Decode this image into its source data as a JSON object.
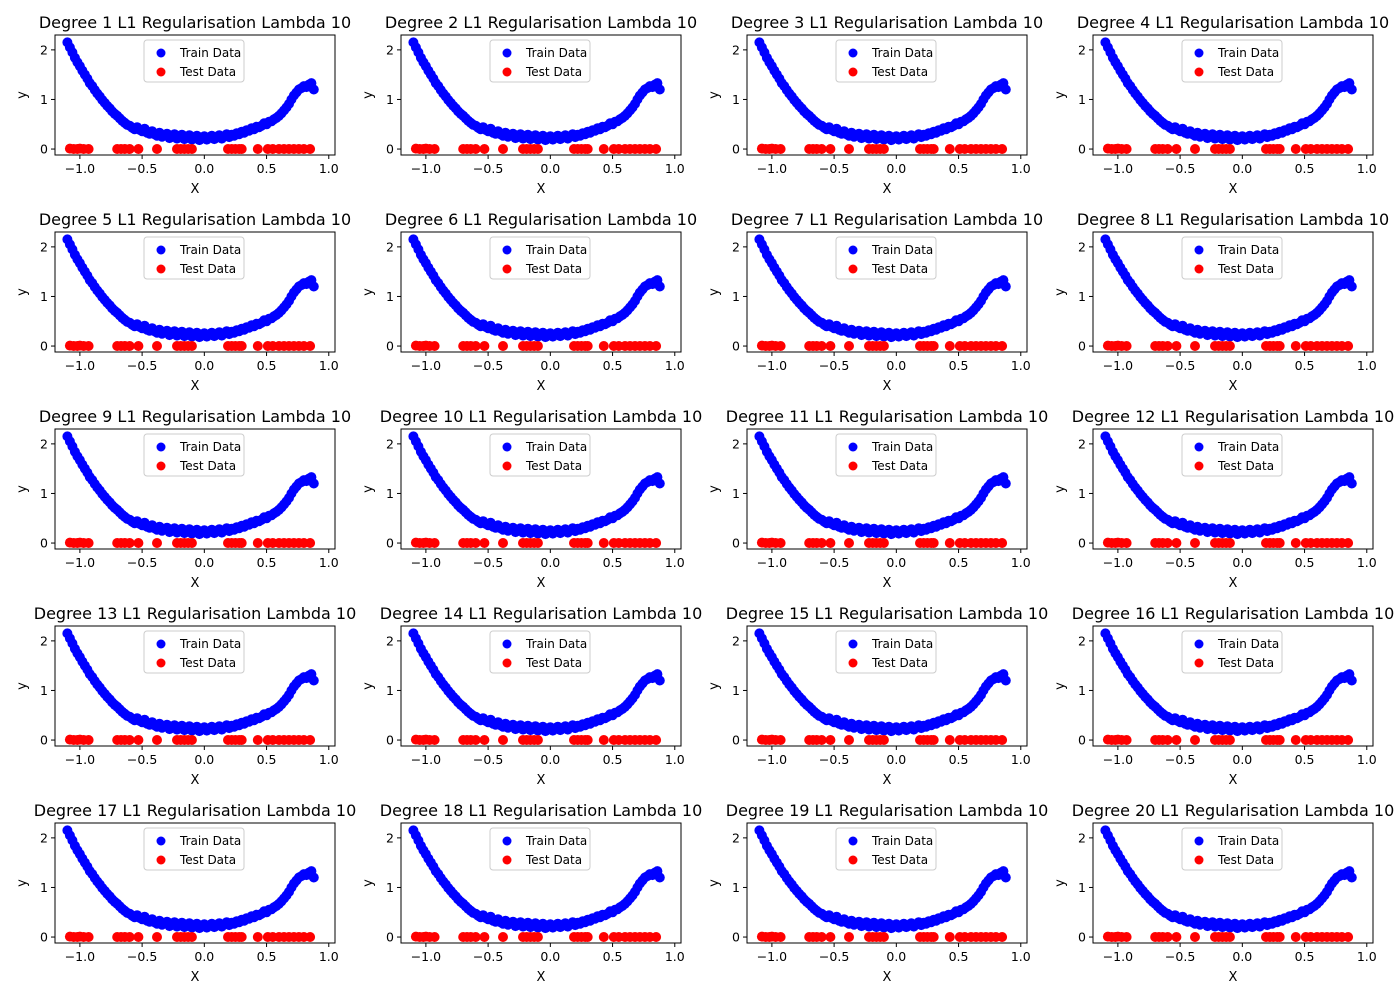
{
  "chart_data": {
    "type": "scatter",
    "layout": {
      "rows": 5,
      "cols": 4
    },
    "common": {
      "xlabel": "X",
      "ylabel": "y",
      "xlim": [
        -1.2,
        1.05
      ],
      "ylim": [
        -0.12,
        2.3
      ],
      "xticks": [
        -1.0,
        -0.5,
        0.0,
        0.5,
        1.0
      ],
      "xtick_labels": [
        "−1.0",
        "−0.5",
        "0.0",
        "0.5",
        "1.0"
      ],
      "yticks": [
        0,
        1,
        2
      ],
      "ytick_labels": [
        "0",
        "1",
        "2"
      ],
      "legend": {
        "placement": "upper center",
        "entries": [
          "Train Data",
          "Test Data"
        ]
      },
      "grid": false
    },
    "titles": [
      "Degree 1 L1 Regularisation Lambda 10",
      "Degree 2 L1 Regularisation Lambda 10",
      "Degree 3 L1 Regularisation Lambda 10",
      "Degree 4 L1 Regularisation Lambda 10",
      "Degree 5 L1 Regularisation Lambda 10",
      "Degree 6 L1 Regularisation Lambda 10",
      "Degree 7 L1 Regularisation Lambda 10",
      "Degree 8 L1 Regularisation Lambda 10",
      "Degree 9 L1 Regularisation Lambda 10",
      "Degree 10 L1 Regularisation Lambda 10",
      "Degree 11 L1 Regularisation Lambda 10",
      "Degree 12 L1 Regularisation Lambda 10",
      "Degree 13 L1 Regularisation Lambda 10",
      "Degree 14 L1 Regularisation Lambda 10",
      "Degree 15 L1 Regularisation Lambda 10",
      "Degree 16 L1 Regularisation Lambda 10",
      "Degree 17 L1 Regularisation Lambda 10",
      "Degree 18 L1 Regularisation Lambda 10",
      "Degree 19 L1 Regularisation Lambda 10",
      "Degree 20 L1 Regularisation Lambda 10"
    ],
    "series": [
      {
        "name": "Train Data",
        "color": "#0000ff",
        "x": [
          -1.1,
          -1.08,
          -1.06,
          -1.04,
          -1.02,
          -1.0,
          -0.98,
          -0.96,
          -0.94,
          -0.92,
          -0.9,
          -0.88,
          -0.86,
          -0.84,
          -0.82,
          -0.8,
          -0.78,
          -0.76,
          -0.74,
          -0.72,
          -0.7,
          -0.68,
          -0.66,
          -0.64,
          -0.62,
          -0.6,
          -0.58,
          -0.56,
          -0.54,
          -0.52,
          -0.5,
          -0.48,
          -0.46,
          -0.44,
          -0.42,
          -0.4,
          -0.38,
          -0.36,
          -0.34,
          -0.32,
          -0.3,
          -0.28,
          -0.26,
          -0.24,
          -0.22,
          -0.2,
          -0.18,
          -0.16,
          -0.14,
          -0.12,
          -0.1,
          -0.08,
          -0.06,
          -0.04,
          -0.02,
          0.0,
          0.02,
          0.04,
          0.06,
          0.08,
          0.1,
          0.12,
          0.14,
          0.16,
          0.18,
          0.2,
          0.22,
          0.24,
          0.26,
          0.28,
          0.3,
          0.32,
          0.34,
          0.36,
          0.38,
          0.4,
          0.42,
          0.44,
          0.46,
          0.48,
          0.5,
          0.52,
          0.54,
          0.56,
          0.58,
          0.6,
          0.62,
          0.64,
          0.66,
          0.68,
          0.7,
          0.72,
          0.74,
          0.76,
          0.78,
          0.8,
          0.82,
          0.84,
          0.86,
          0.88
        ],
        "y": [
          2.15,
          2.05,
          1.95,
          1.84,
          1.75,
          1.67,
          1.58,
          1.5,
          1.42,
          1.33,
          1.27,
          1.19,
          1.12,
          1.06,
          0.99,
          0.93,
          0.87,
          0.82,
          0.76,
          0.71,
          0.67,
          0.62,
          0.57,
          0.53,
          0.49,
          0.47,
          0.43,
          0.4,
          0.44,
          0.39,
          0.36,
          0.41,
          0.33,
          0.31,
          0.36,
          0.3,
          0.27,
          0.33,
          0.25,
          0.28,
          0.31,
          0.22,
          0.27,
          0.3,
          0.21,
          0.25,
          0.29,
          0.2,
          0.24,
          0.28,
          0.19,
          0.23,
          0.27,
          0.18,
          0.22,
          0.26,
          0.19,
          0.23,
          0.27,
          0.2,
          0.24,
          0.28,
          0.21,
          0.26,
          0.3,
          0.24,
          0.29,
          0.27,
          0.32,
          0.3,
          0.35,
          0.33,
          0.38,
          0.37,
          0.42,
          0.4,
          0.45,
          0.44,
          0.47,
          0.52,
          0.5,
          0.55,
          0.56,
          0.6,
          0.63,
          0.67,
          0.72,
          0.78,
          0.84,
          0.91,
          1.0,
          1.08,
          1.14,
          1.2,
          1.23,
          1.27,
          1.25,
          1.3,
          1.33,
          1.2
        ]
      },
      {
        "name": "Test Data",
        "color": "#ff0000",
        "x": [
          -1.08,
          -1.05,
          -1.02,
          -1.0,
          -0.97,
          -0.93,
          -0.7,
          -0.67,
          -0.64,
          -0.6,
          -0.53,
          -0.38,
          -0.22,
          -0.19,
          -0.16,
          -0.13,
          -0.1,
          0.19,
          0.22,
          0.25,
          0.28,
          0.3,
          0.43,
          0.51,
          0.55,
          0.6,
          0.64,
          0.68,
          0.72,
          0.76,
          0.8,
          0.85
        ],
        "y": [
          0.01,
          0.0,
          0.0,
          0.01,
          0.0,
          0.0,
          0.0,
          0.0,
          0.0,
          0.0,
          0.0,
          0.0,
          0.0,
          0.0,
          0.0,
          0.0,
          0.0,
          0.0,
          0.0,
          0.0,
          0.0,
          0.0,
          0.0,
          0.0,
          0.0,
          0.0,
          0.0,
          0.0,
          0.0,
          0.0,
          0.0,
          0.0
        ]
      }
    ]
  }
}
